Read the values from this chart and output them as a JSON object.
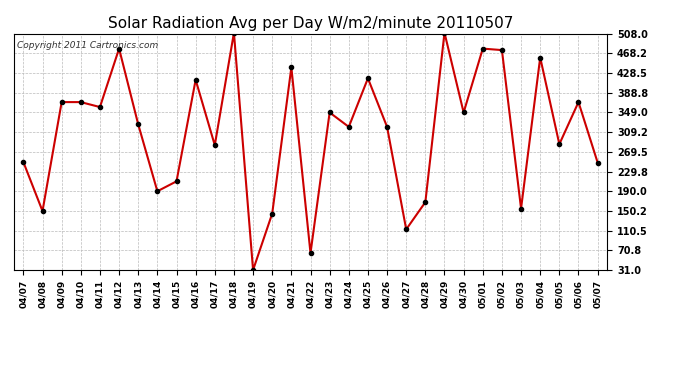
{
  "title": "Solar Radiation Avg per Day W/m2/minute 20110507",
  "copyright": "Copyright 2011 Cartronics.com",
  "dates": [
    "04/07",
    "04/08",
    "04/09",
    "04/10",
    "04/11",
    "04/12",
    "04/13",
    "04/14",
    "04/15",
    "04/16",
    "04/17",
    "04/18",
    "04/19",
    "04/20",
    "04/21",
    "04/22",
    "04/23",
    "04/24",
    "04/25",
    "04/26",
    "04/27",
    "04/28",
    "04/29",
    "04/30",
    "05/01",
    "05/02",
    "05/03",
    "05/04",
    "05/05",
    "05/06",
    "05/07"
  ],
  "values": [
    249,
    150,
    370,
    370,
    360,
    478,
    325,
    190,
    210,
    415,
    283,
    510,
    31,
    145,
    440,
    65,
    349,
    320,
    418,
    320,
    113,
    168,
    510,
    349,
    478,
    475,
    155,
    460,
    285,
    370,
    248
  ],
  "line_color": "#cc0000",
  "marker": "o",
  "marker_size": 3,
  "marker_facecolor": "#000000",
  "marker_edgecolor": "#000000",
  "bg_color": "#ffffff",
  "plot_bg_color": "#ffffff",
  "grid_color": "#bbbbbb",
  "yticks": [
    31.0,
    70.8,
    110.5,
    150.2,
    190.0,
    229.8,
    269.5,
    309.2,
    349.0,
    388.8,
    428.5,
    468.2,
    508.0
  ],
  "ylim": [
    31.0,
    508.0
  ],
  "title_fontsize": 11,
  "copyright_fontsize": 6.5,
  "tick_fontsize": 6.5,
  "ytick_fontsize": 7,
  "linewidth": 1.5
}
